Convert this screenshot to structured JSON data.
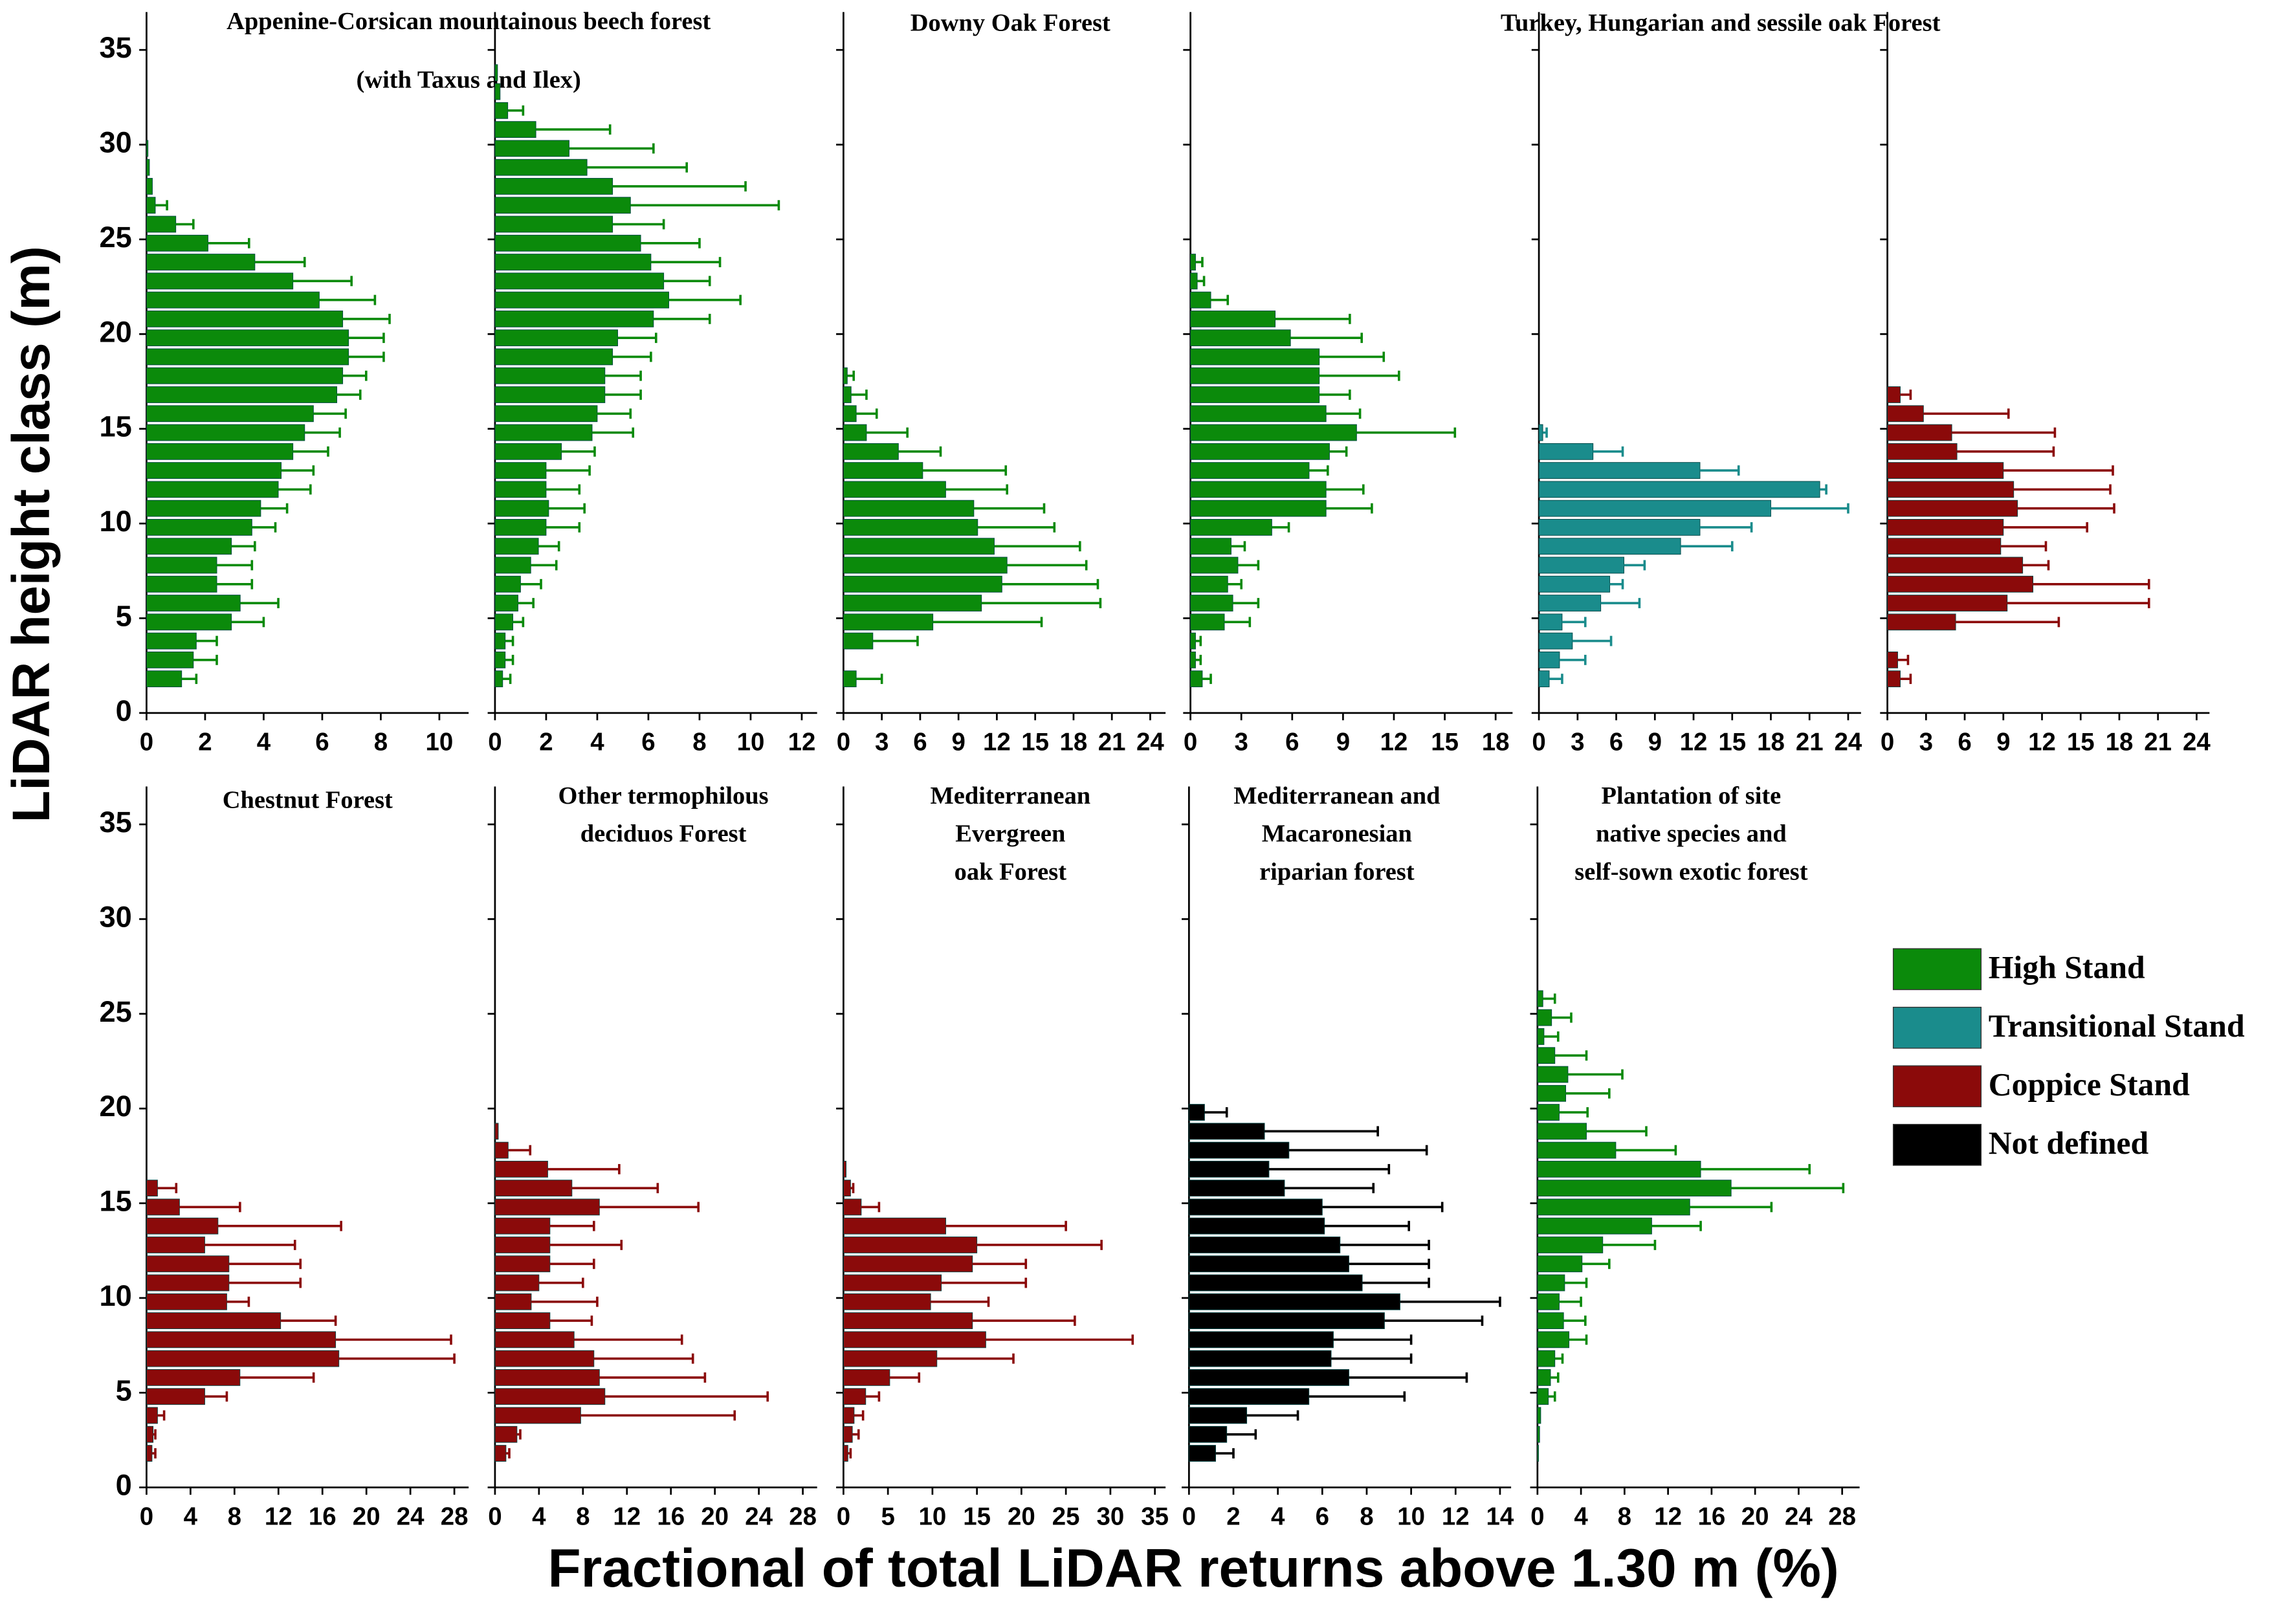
{
  "ylabel": "LiDAR height class (m)",
  "xlabel": "Fractional of total LiDAR returns above 1.30 m (%)",
  "chart_data": [
    {
      "type": "bar",
      "orientation": "horizontal",
      "title": [
        "Appenine-Corsican mountainous beech forest",
        "(with Taxus and Ilex)"
      ],
      "xlim": [
        0,
        11
      ],
      "xticks": [
        0,
        2,
        4,
        6,
        8,
        10
      ],
      "ylim": [
        0,
        37
      ],
      "yticks": [
        0,
        5,
        10,
        15,
        20,
        25,
        30,
        35
      ],
      "ytick_labels": true,
      "series": [
        {
          "name": "High Stand",
          "color": "#0b8a0b",
          "values": [
            1.2,
            1.6,
            1.7,
            2.9,
            3.2,
            2.4,
            2.4,
            2.9,
            3.6,
            3.9,
            4.5,
            4.6,
            5.0,
            5.4,
            5.7,
            6.5,
            6.7,
            6.9,
            6.9,
            6.7,
            5.9,
            5.0,
            3.7,
            2.1,
            1.0,
            0.3,
            0.2,
            0.1,
            0.05
          ],
          "errors": [
            0.5,
            0.8,
            0.7,
            1.1,
            1.3,
            1.2,
            1.2,
            0.8,
            0.8,
            0.9,
            1.1,
            1.1,
            1.2,
            1.2,
            1.1,
            0.8,
            0.8,
            1.2,
            1.2,
            1.6,
            1.9,
            2.0,
            1.7,
            1.4,
            0.6,
            0.4,
            null,
            null,
            null
          ]
        }
      ]
    },
    {
      "type": "bar",
      "orientation": "horizontal",
      "xlim": [
        0,
        12.6
      ],
      "xticks": [
        0,
        2,
        4,
        6,
        8,
        10,
        12
      ],
      "ylim": [
        0,
        37
      ],
      "yticks": [
        0,
        5,
        10,
        15,
        20,
        25,
        30,
        35
      ],
      "ytick_labels": false,
      "series": [
        {
          "name": "High Stand",
          "color": "#0b8a0b",
          "values": [
            0.3,
            0.4,
            0.4,
            0.7,
            0.9,
            1.0,
            1.4,
            1.7,
            2.0,
            2.1,
            2.0,
            2.0,
            2.6,
            3.8,
            4.0,
            4.3,
            4.3,
            4.6,
            4.8,
            6.2,
            6.8,
            6.6,
            6.1,
            5.7,
            4.6,
            5.3,
            4.6,
            3.6,
            2.9,
            1.6,
            0.5,
            0.2,
            0.1
          ],
          "errors": [
            0.3,
            0.3,
            0.3,
            0.4,
            0.6,
            0.8,
            1.0,
            0.8,
            1.3,
            1.4,
            1.3,
            1.7,
            1.3,
            1.6,
            1.3,
            1.4,
            1.4,
            1.5,
            1.5,
            2.2,
            2.8,
            1.8,
            2.7,
            2.3,
            2.0,
            5.8,
            5.2,
            3.9,
            3.3,
            2.9,
            0.6,
            null,
            null
          ]
        }
      ]
    },
    {
      "type": "bar",
      "orientation": "horizontal",
      "title": [
        "Downy Oak Forest"
      ],
      "xlim": [
        0,
        25.2
      ],
      "xticks": [
        0,
        3,
        6,
        9,
        12,
        15,
        18,
        21,
        24
      ],
      "ylim": [
        0,
        37
      ],
      "yticks": [
        0,
        5,
        10,
        15,
        20,
        25,
        30,
        35
      ],
      "ytick_labels": false,
      "series": [
        {
          "name": "High Stand",
          "color": "#0b8a0b",
          "values": [
            1.0,
            null,
            2.3,
            7.0,
            10.8,
            12.4,
            12.8,
            11.8,
            10.5,
            10.2,
            8.0,
            6.2,
            4.3,
            1.8,
            1.0,
            0.6,
            0.3
          ],
          "errors": [
            2.0,
            null,
            3.5,
            8.5,
            9.3,
            7.5,
            6.2,
            6.7,
            6.0,
            5.5,
            4.8,
            6.5,
            3.3,
            3.2,
            1.6,
            1.2,
            0.5
          ]
        }
      ]
    },
    {
      "type": "bar",
      "orientation": "horizontal",
      "title": [
        "Turkey, Hungarian and sessile oak Forest"
      ],
      "xlim": [
        0,
        19
      ],
      "xticks": [
        0,
        3,
        6,
        9,
        12,
        15,
        18
      ],
      "ylim": [
        0,
        37
      ],
      "yticks": [
        0,
        5,
        10,
        15,
        20,
        25,
        30,
        35
      ],
      "ytick_labels": false,
      "series": [
        {
          "name": "High Stand",
          "color": "#0b8a0b",
          "values": [
            0.7,
            0.3,
            0.3,
            2.0,
            2.5,
            2.2,
            2.8,
            2.4,
            4.8,
            8.0,
            8.0,
            7.0,
            8.2,
            9.8,
            8.0,
            7.6,
            7.6,
            7.6,
            5.9,
            5.0,
            1.2,
            0.4,
            0.3
          ],
          "errors": [
            0.5,
            0.3,
            0.3,
            1.5,
            1.5,
            0.8,
            1.2,
            0.8,
            1.0,
            2.7,
            2.2,
            1.1,
            1.0,
            5.8,
            2.0,
            1.8,
            4.7,
            3.8,
            4.2,
            4.4,
            1.0,
            0.4,
            0.4
          ]
        }
      ]
    },
    {
      "type": "bar",
      "orientation": "horizontal",
      "xlim": [
        0,
        25
      ],
      "xticks": [
        0,
        3,
        6,
        9,
        12,
        15,
        18,
        21,
        24
      ],
      "ylim": [
        0,
        37
      ],
      "yticks": [
        0,
        5,
        10,
        15,
        20,
        25,
        30,
        35
      ],
      "ytick_labels": false,
      "series": [
        {
          "name": "Transitional Stand",
          "color": "#1a8c8c",
          "values": [
            0.8,
            1.6,
            2.6,
            1.8,
            4.8,
            5.5,
            6.6,
            11.0,
            12.5,
            18.0,
            21.8,
            12.5,
            4.2,
            0.3
          ],
          "errors": [
            1.0,
            2.0,
            3.0,
            1.8,
            3.0,
            1.0,
            1.6,
            4.0,
            4.0,
            6.0,
            0.5,
            3.0,
            2.3,
            0.3
          ]
        }
      ]
    },
    {
      "type": "bar",
      "orientation": "horizontal",
      "xlim": [
        0,
        25
      ],
      "xticks": [
        0,
        3,
        6,
        9,
        12,
        15,
        18,
        21,
        24
      ],
      "ylim": [
        0,
        37
      ],
      "yticks": [
        0,
        5,
        10,
        15,
        20,
        25,
        30,
        35
      ],
      "ytick_labels": false,
      "series": [
        {
          "name": "Coppice Stand",
          "color": "#8b0a0a",
          "values": [
            1.0,
            0.8,
            null,
            5.3,
            9.3,
            11.3,
            10.5,
            8.8,
            9.0,
            10.1,
            9.8,
            9.0,
            5.4,
            5.0,
            2.8,
            1.0
          ],
          "errors": [
            0.8,
            0.8,
            null,
            8.0,
            11.0,
            9.0,
            2.0,
            3.5,
            6.5,
            7.5,
            7.5,
            8.5,
            7.5,
            8.0,
            6.6,
            0.8
          ]
        }
      ]
    },
    {
      "type": "bar",
      "orientation": "horizontal",
      "title": [
        "Chestnut Forest"
      ],
      "xlim": [
        0,
        29.3
      ],
      "xticks": [
        0,
        4,
        8,
        12,
        16,
        20,
        24,
        28
      ],
      "ylim": [
        0,
        37
      ],
      "yticks": [
        0,
        5,
        10,
        15,
        20,
        25,
        30,
        35
      ],
      "ytick_labels": true,
      "series": [
        {
          "name": "Coppice Stand",
          "color": "#8b0a0a",
          "values": [
            0.5,
            0.6,
            1.0,
            5.3,
            8.5,
            17.5,
            17.2,
            12.2,
            7.3,
            7.5,
            7.5,
            5.3,
            6.5,
            3.0,
            1.0
          ],
          "errors": [
            0.3,
            0.2,
            0.6,
            2.0,
            6.7,
            10.5,
            10.5,
            5.0,
            2.0,
            6.5,
            6.5,
            8.2,
            11.2,
            5.5,
            1.7
          ]
        }
      ]
    },
    {
      "type": "bar",
      "orientation": "horizontal",
      "title": [
        "Other termophilous",
        "deciduos Forest"
      ],
      "xlim": [
        0,
        29.3
      ],
      "xticks": [
        0,
        4,
        8,
        12,
        16,
        20,
        24,
        28
      ],
      "ylim": [
        0,
        37
      ],
      "yticks": [
        0,
        5,
        10,
        15,
        20,
        25,
        30,
        35
      ],
      "ytick_labels": false,
      "series": [
        {
          "name": "Coppice Stand",
          "color": "#8b0a0a",
          "values": [
            1.0,
            2.0,
            7.8,
            10.0,
            9.5,
            9.0,
            7.2,
            5.0,
            3.3,
            4.0,
            5.0,
            5.0,
            5.0,
            9.5,
            7.0,
            4.8,
            1.2,
            0.3
          ],
          "errors": [
            0.3,
            0.3,
            14.0,
            14.8,
            9.6,
            9.0,
            9.8,
            3.8,
            6.0,
            4.0,
            4.0,
            6.5,
            4.0,
            9.0,
            7.8,
            6.5,
            2.0,
            null
          ]
        }
      ]
    },
    {
      "type": "bar",
      "orientation": "horizontal",
      "title": [
        "Mediterranean",
        "Evergreen",
        "oak Forest"
      ],
      "xlim": [
        0,
        36.2
      ],
      "xticks": [
        0,
        5,
        10,
        15,
        20,
        25,
        30,
        35
      ],
      "ylim": [
        0,
        37
      ],
      "yticks": [
        0,
        5,
        10,
        15,
        20,
        25,
        30,
        35
      ],
      "ytick_labels": false,
      "series": [
        {
          "name": "Coppice Stand",
          "color": "#8b0a0a",
          "values": [
            0.5,
            1.0,
            1.2,
            2.5,
            5.2,
            10.5,
            16.0,
            14.5,
            9.8,
            11.0,
            14.5,
            15.0,
            11.5,
            2.0,
            0.8,
            0.3
          ],
          "errors": [
            0.3,
            0.7,
            1.0,
            1.5,
            3.3,
            8.6,
            16.5,
            11.5,
            6.5,
            9.5,
            6.0,
            14.0,
            13.5,
            2.0,
            0.3,
            null
          ]
        }
      ]
    },
    {
      "type": "bar",
      "orientation": "horizontal",
      "title": [
        "Mediterranean and",
        "Macaronesian",
        "riparian forest"
      ],
      "xlim": [
        0,
        14.5
      ],
      "xticks": [
        0,
        2,
        4,
        6,
        8,
        10,
        12,
        14
      ],
      "ylim": [
        0,
        37
      ],
      "yticks": [
        0,
        5,
        10,
        15,
        20,
        25,
        30,
        35
      ],
      "ytick_labels": false,
      "series": [
        {
          "name": "Not defined",
          "color": "#000000",
          "values": [
            1.2,
            1.7,
            2.6,
            5.4,
            7.2,
            6.4,
            6.5,
            8.8,
            9.5,
            7.8,
            7.2,
            6.8,
            6.1,
            6.0,
            4.3,
            3.6,
            4.5,
            3.4,
            0.7
          ],
          "errors": [
            0.8,
            1.3,
            2.3,
            4.3,
            5.3,
            3.6,
            3.5,
            4.4,
            4.5,
            3.0,
            3.6,
            4.0,
            3.8,
            5.4,
            4.0,
            5.4,
            6.2,
            5.1,
            1.0
          ]
        }
      ]
    },
    {
      "type": "bar",
      "orientation": "horizontal",
      "title": [
        "Plantation of site",
        "native species and",
        "self-sown exotic forest"
      ],
      "xlim": [
        0,
        29.6
      ],
      "xticks": [
        0,
        4,
        8,
        12,
        16,
        20,
        24,
        28
      ],
      "ylim": [
        0,
        37
      ],
      "yticks": [
        0,
        5,
        10,
        15,
        20,
        25,
        30,
        35
      ],
      "ytick_labels": false,
      "series": [
        {
          "name": "High Stand",
          "color": "#0b8a0b",
          "values": [
            0.1,
            0.2,
            0.3,
            1.0,
            1.2,
            1.6,
            2.9,
            2.4,
            2.0,
            2.5,
            4.1,
            6.0,
            10.5,
            14.0,
            17.8,
            15.0,
            7.2,
            4.5,
            2.0,
            2.6,
            2.8,
            1.6,
            0.6,
            1.3,
            0.5
          ],
          "errors": [
            null,
            null,
            null,
            0.6,
            0.7,
            0.7,
            1.6,
            2.0,
            2.0,
            2.0,
            2.5,
            4.8,
            4.5,
            7.5,
            10.3,
            10.0,
            5.5,
            5.5,
            2.6,
            4.0,
            5.0,
            2.9,
            1.3,
            1.8,
            1.1
          ]
        }
      ]
    }
  ]
}
